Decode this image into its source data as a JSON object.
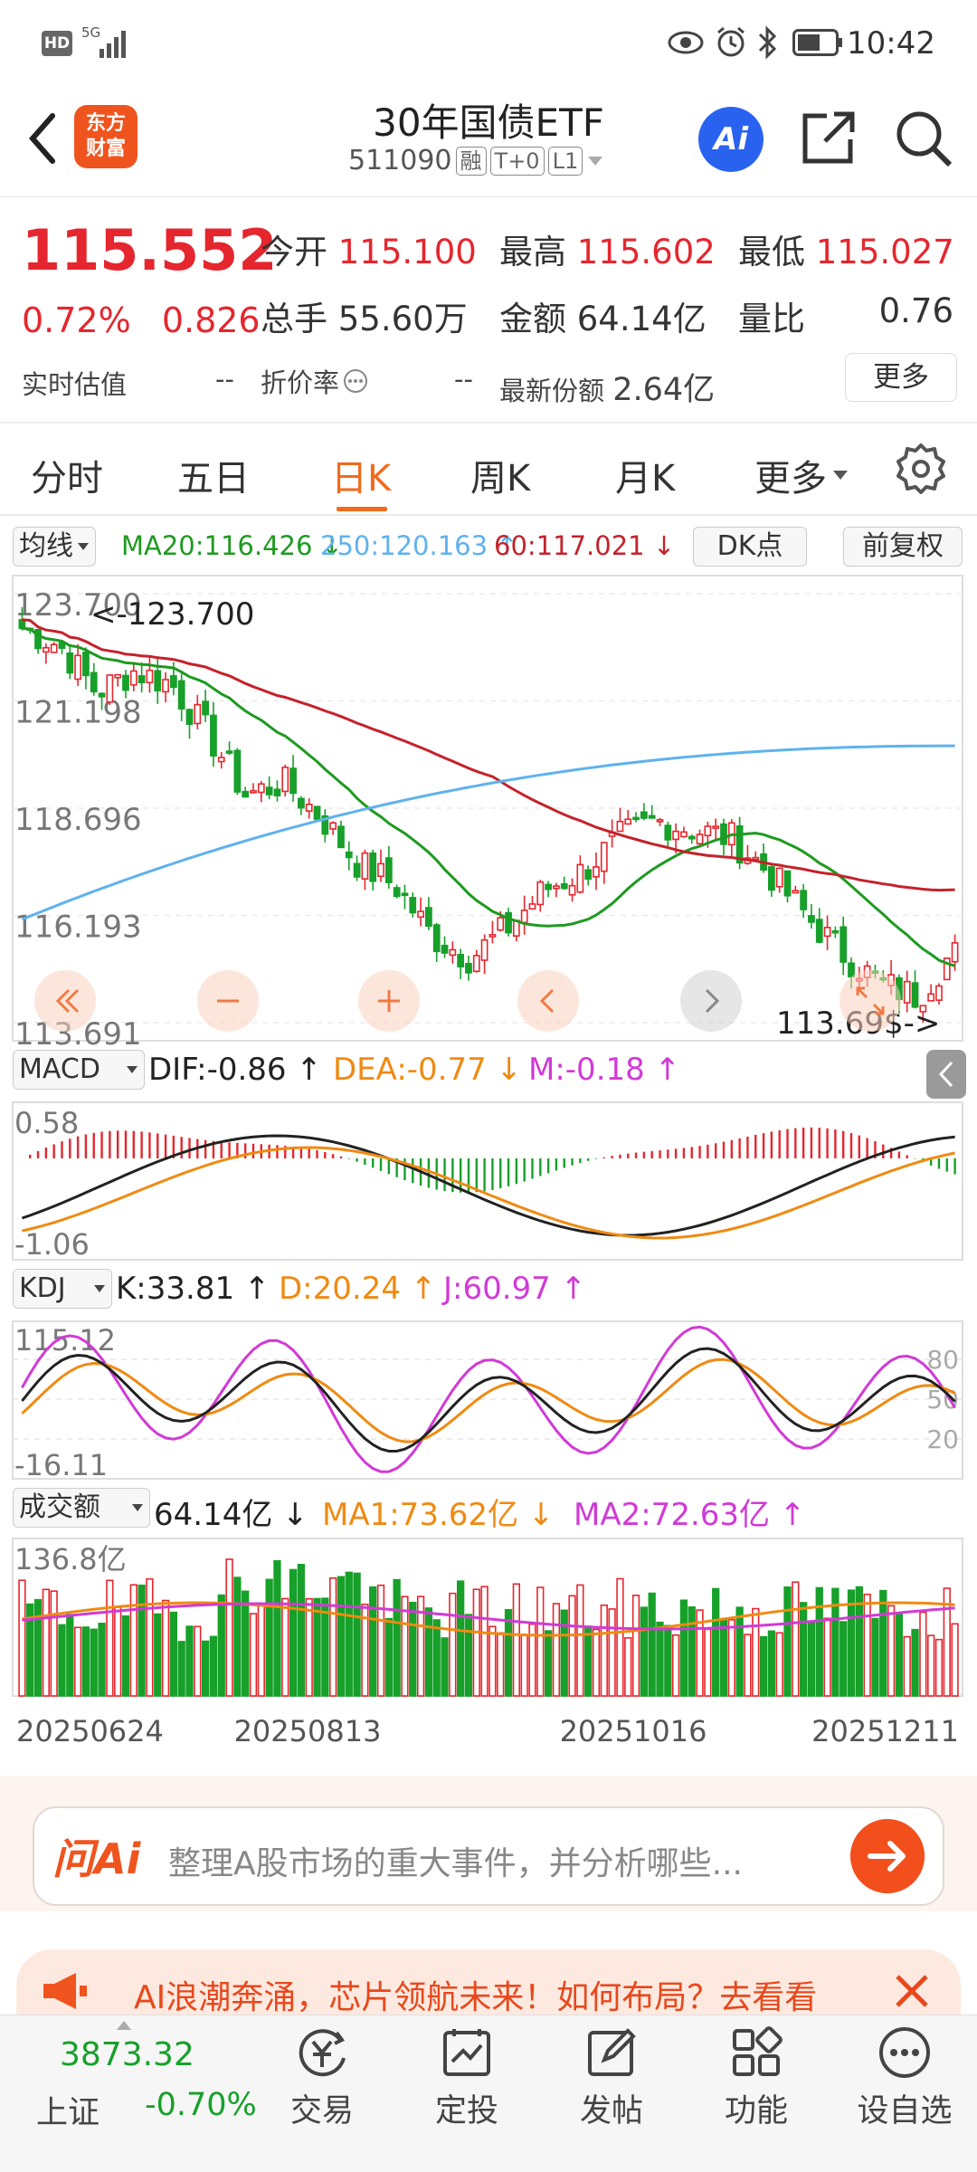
{
  "status_bar": {
    "network": "HD",
    "signal_label": "5G",
    "time": "10:42"
  },
  "header": {
    "back_icon": "chevron-left-icon",
    "logo_text_1": "东方",
    "logo_text_2": "财富",
    "title": "30年国债ETF",
    "code": "511090",
    "tags": [
      "融",
      "T+0",
      "L1"
    ],
    "ai_label": "Ai"
  },
  "quote": {
    "price": "115.552",
    "change_pct": "0.72%",
    "change": "0.826",
    "open_label": "今开",
    "open": "115.100",
    "high_label": "最高",
    "high": "115.602",
    "low_label": "最低",
    "low": "115.027",
    "volume_label": "总手",
    "volume": "55.60万",
    "amount_label": "金额",
    "amount": "64.14亿",
    "ratio_label": "量比",
    "ratio": "0.76",
    "iopv_label": "实时估值",
    "iopv": "--",
    "discount_label": "折价率",
    "discount": "--",
    "shares_label": "最新份额",
    "shares": "2.64亿",
    "more_button": "更多",
    "colors": {
      "up": "#e5262e",
      "down": "#17a02a"
    }
  },
  "tabs": {
    "items": [
      "分时",
      "五日",
      "日K",
      "周K",
      "月K",
      "更多"
    ],
    "active": "日K"
  },
  "kline_header": {
    "ma_selector": "均线",
    "ma20": "MA20:116.426 ↓",
    "ma250": "250:120.163 ↑",
    "ma60": "60:117.021 ↓",
    "dk_button": "DK点",
    "adjust_button": "前复权"
  },
  "macd_header": {
    "selector": "MACD",
    "dif": "DIF:-0.86 ↑",
    "dea": "DEA:-0.77 ↓",
    "m": "M:-0.18 ↑"
  },
  "kdj_header": {
    "selector": "KDJ",
    "k": "K:33.81 ↑",
    "d": "D:20.24 ↑",
    "j": "J:60.97 ↑"
  },
  "vol_header": {
    "selector": "成交额",
    "value": "64.14亿 ↓",
    "ma1": "MA1:73.62亿 ↓",
    "ma2": "MA2:72.63亿 ↑"
  },
  "chart_data": [
    {
      "type": "candlestick",
      "title": "日K",
      "y_ticks": [
        "123.700",
        "121.198",
        "118.696",
        "116.193",
        "113.691"
      ],
      "ylim": [
        113.691,
        123.7
      ],
      "annotation_high": "<-123.700",
      "annotation_low": "113.69$->",
      "ma_series": [
        {
          "name": "MA20",
          "color": "#1e9a20"
        },
        {
          "name": "250",
          "color": "#5fb2ee"
        },
        {
          "name": "60",
          "color": "#c4222b"
        }
      ],
      "x_labels": [
        "20250624",
        "20250813",
        "20251016",
        "20251211"
      ]
    },
    {
      "type": "line",
      "title": "MACD",
      "y_ticks": [
        "0.58",
        "-1.06"
      ]
    },
    {
      "type": "line",
      "title": "KDJ",
      "y_ticks": [
        "115.12",
        "-16.11"
      ],
      "right_ticks": [
        "80",
        "50",
        "20"
      ]
    },
    {
      "type": "bar",
      "title": "成交额",
      "y_ticks": [
        "136.8亿"
      ]
    }
  ],
  "ai_bar": {
    "logo": "问Ai",
    "placeholder": "整理A股市场的重大事件，并分析哪些..."
  },
  "banner": {
    "text": "AI浪潮奔涌，芯片领航未来！如何布局？去看看"
  },
  "bottom_nav": {
    "index_value": "3873.32",
    "index_name": "上证",
    "index_change": "-0.70%",
    "items": [
      "交易",
      "定投",
      "发帖",
      "功能",
      "设自选"
    ]
  }
}
